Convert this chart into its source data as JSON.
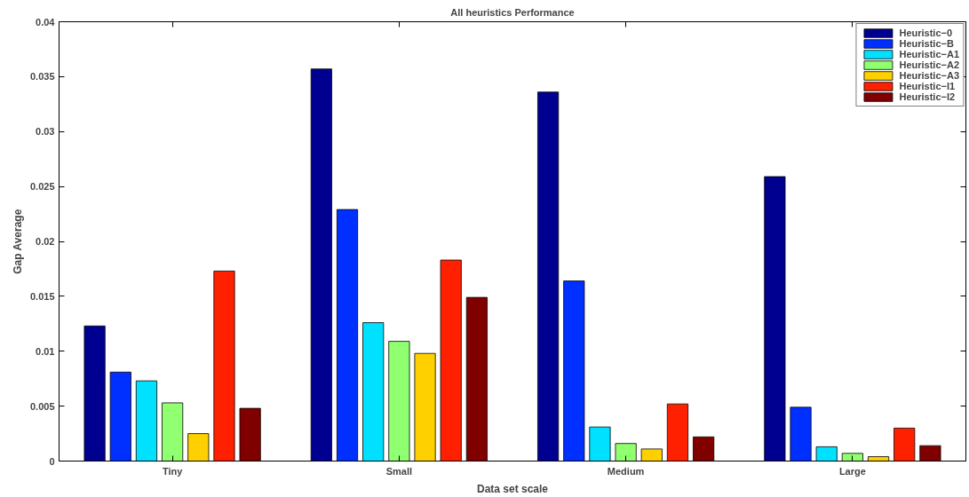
{
  "chart_data": {
    "type": "bar",
    "title": "All heuristics Performance",
    "xlabel": "Data set scale",
    "ylabel": "Gap Average",
    "categories": [
      "Tiny",
      "Small",
      "Medium",
      "Large"
    ],
    "series": [
      {
        "name": "Heuristic−0",
        "color": "#000090",
        "values": [
          0.0123,
          0.0357,
          0.0336,
          0.0259
        ]
      },
      {
        "name": "Heuristic−B",
        "color": "#0030ff",
        "values": [
          0.0081,
          0.0229,
          0.0164,
          0.0049
        ]
      },
      {
        "name": "Heuristic−A1",
        "color": "#00e0ff",
        "values": [
          0.0073,
          0.0126,
          0.0031,
          0.0013
        ]
      },
      {
        "name": "Heuristic−A2",
        "color": "#90ff70",
        "values": [
          0.0053,
          0.0109,
          0.0016,
          0.0007
        ]
      },
      {
        "name": "Heuristic−A3",
        "color": "#ffd000",
        "values": [
          0.0025,
          0.0098,
          0.0011,
          0.0004
        ]
      },
      {
        "name": "Heuristic−I1",
        "color": "#ff2000",
        "values": [
          0.0173,
          0.0183,
          0.0052,
          0.003
        ]
      },
      {
        "name": "Heuristic−I2",
        "color": "#800000",
        "values": [
          0.0048,
          0.0149,
          0.0022,
          0.0014
        ]
      }
    ],
    "ylim": [
      0,
      0.04
    ],
    "yticks": [
      0,
      0.005,
      0.01,
      0.015,
      0.02,
      0.025,
      0.03,
      0.035,
      0.04
    ],
    "grid": false,
    "legend": "top right"
  }
}
